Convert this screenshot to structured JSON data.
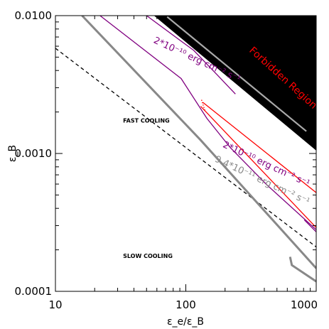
{
  "chart_data": {
    "type": "line",
    "title": "",
    "xlabel": "ε_e/ε_B",
    "ylabel": "ε_B",
    "xscale": "log",
    "yscale": "log",
    "xlim": [
      10,
      1000
    ],
    "ylim": [
      0.0001,
      0.01
    ],
    "x_ticks": [
      {
        "value": 10,
        "label": "10"
      },
      {
        "value": 100,
        "label": "100"
      },
      {
        "value": 1000,
        "label": "1000"
      }
    ],
    "y_ticks": [
      {
        "value": 0.0001,
        "label": "0.0001"
      },
      {
        "value": 0.001,
        "label": "0.0010"
      },
      {
        "value": 0.01,
        "label": "0.0100"
      }
    ],
    "grid": false,
    "forbidden_region": {
      "label": "Forbidden Region",
      "color": "#000000",
      "polygon": [
        [
          57,
          0.01
        ],
        [
          1000,
          0.01
        ],
        [
          1000,
          0.00105
        ]
      ]
    },
    "series": [
      {
        "role": "cooling-boundary",
        "style": "dashed",
        "color": "#000000",
        "points": [
          [
            10,
            0.0058
          ],
          [
            1000,
            0.00021
          ]
        ]
      },
      {
        "role": "gray-upper",
        "style": "solid",
        "color": "#888888",
        "points": [
          [
            16,
            0.01
          ],
          [
            130,
            0.00125
          ],
          [
            1000,
            0.000147
          ]
        ]
      },
      {
        "role": "gray-lower",
        "style": "solid",
        "color": "#888888",
        "points": [
          [
            630,
            0.000178
          ],
          [
            650,
            0.000155
          ],
          [
            1000,
            0.000118
          ]
        ]
      },
      {
        "role": "gray-in-region",
        "style": "solid",
        "color": "#aaaaaa",
        "points": [
          [
            72,
            0.0098
          ],
          [
            840,
            0.00145
          ]
        ]
      },
      {
        "role": "purple-upper",
        "style": "solid",
        "color": "#800080",
        "points": [
          [
            22,
            0.01
          ],
          [
            92,
            0.0035
          ],
          [
            145,
            0.0018
          ],
          [
            220,
            0.0011
          ],
          [
            420,
            0.00059
          ],
          [
            1000,
            0.00028
          ]
        ]
      },
      {
        "role": "purple-upper-right",
        "style": "solid",
        "color": "#800080",
        "points": [
          [
            50,
            0.01
          ],
          [
            115,
            0.0056
          ],
          [
            175,
            0.0037
          ],
          [
            240,
            0.0027
          ]
        ]
      },
      {
        "role": "purple-lower-right",
        "style": "solid",
        "color": "#800080",
        "points": [
          [
            810,
            0.00033
          ],
          [
            1000,
            0.00027
          ]
        ]
      },
      {
        "role": "red-upper",
        "style": "solid",
        "color": "#ff0000",
        "points": [
          [
            135,
            0.00235
          ],
          [
            1000,
            0.00052
          ]
        ]
      },
      {
        "role": "red-lower",
        "style": "solid",
        "color": "#ff0000",
        "points": [
          [
            130,
            0.0022
          ],
          [
            1000,
            0.00029
          ]
        ]
      },
      {
        "role": "red-tip",
        "style": "dotted",
        "color": "#ff0000",
        "points": [
          [
            132,
            0.00245
          ],
          [
            140,
            0.00205
          ]
        ]
      }
    ],
    "annotations": [
      {
        "text": "2*10⁻¹⁰ erg cm⁻² s⁻¹",
        "color": "#800080",
        "x": 56,
        "y": 0.0064,
        "angle": 25
      },
      {
        "text": "2*10⁻¹⁰ erg cm⁻² s⁻¹",
        "color": "#800080",
        "x": 190,
        "y": 0.00112,
        "angle": 25
      },
      {
        "text": "9.4*10⁻¹¹ erg cm⁻² s⁻¹",
        "color": "#888888",
        "x": 165,
        "y": 0.00088,
        "angle": 25
      },
      {
        "text": "FAST COOLING",
        "color": "#000000",
        "x": 33,
        "y": 0.00168,
        "angle": 0
      },
      {
        "text": "SLOW COOLING",
        "color": "#000000",
        "x": 33,
        "y": 0.000175,
        "angle": 0
      }
    ]
  }
}
